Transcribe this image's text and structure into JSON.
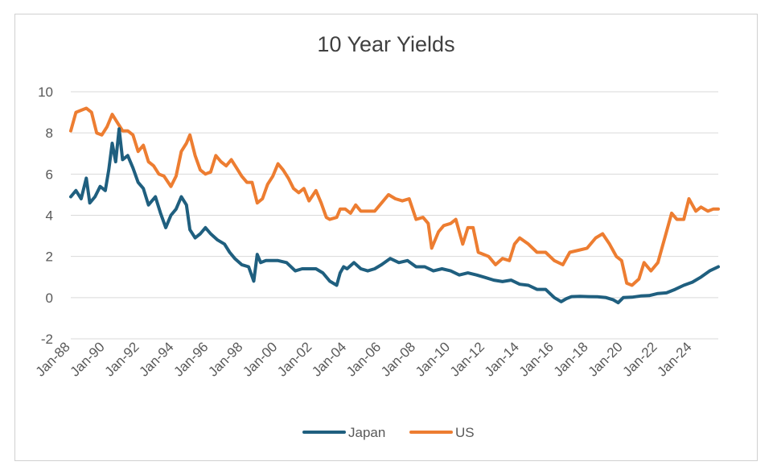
{
  "chart_data": {
    "type": "line",
    "title": "10 Year Yields",
    "xlabel": "",
    "ylabel": "",
    "ylim": [
      -2,
      10
    ],
    "yticks": [
      10,
      8,
      6,
      4,
      2,
      0,
      -2
    ],
    "x_range_years": [
      1988.0,
      2025.5
    ],
    "xtick_labels": [
      "Jan-88",
      "Jan-90",
      "Jan-92",
      "Jan-94",
      "Jan-96",
      "Jan-98",
      "Jan-00",
      "Jan-02",
      "Jan-04",
      "Jan-06",
      "Jan-08",
      "Jan-10",
      "Jan-12",
      "Jan-14",
      "Jan-16",
      "Jan-18",
      "Jan-20",
      "Jan-22",
      "Jan-24"
    ],
    "legend_position": "bottom",
    "series": [
      {
        "name": "Japan",
        "color": "#1f5f7f",
        "x": [
          1988.0,
          1988.3,
          1988.6,
          1988.9,
          1989.1,
          1989.4,
          1989.7,
          1990.0,
          1990.2,
          1990.4,
          1990.6,
          1990.8,
          1991.0,
          1991.3,
          1991.6,
          1991.9,
          1992.2,
          1992.5,
          1992.9,
          1993.2,
          1993.5,
          1993.8,
          1994.1,
          1994.4,
          1994.7,
          1994.9,
          1995.2,
          1995.5,
          1995.8,
          1996.1,
          1996.5,
          1996.9,
          1997.2,
          1997.5,
          1997.9,
          1998.3,
          1998.6,
          1998.8,
          1999.0,
          1999.3,
          1999.6,
          2000.0,
          2000.5,
          2001.0,
          2001.4,
          2001.8,
          2002.2,
          2002.6,
          2003.0,
          2003.4,
          2003.6,
          2003.8,
          2004.0,
          2004.4,
          2004.8,
          2005.2,
          2005.6,
          2006.0,
          2006.5,
          2007.0,
          2007.5,
          2008.0,
          2008.5,
          2009.0,
          2009.5,
          2010.0,
          2010.5,
          2011.0,
          2011.5,
          2012.0,
          2012.5,
          2013.0,
          2013.5,
          2014.0,
          2014.5,
          2015.0,
          2015.5,
          2016.0,
          2016.4,
          2016.7,
          2017.0,
          2017.5,
          2018.0,
          2018.5,
          2019.0,
          2019.4,
          2019.7,
          2020.0,
          2020.5,
          2021.0,
          2021.5,
          2022.0,
          2022.5,
          2023.0,
          2023.5,
          2024.0,
          2024.5,
          2025.0,
          2025.5
        ],
        "values": [
          4.9,
          5.2,
          4.8,
          5.8,
          4.6,
          4.9,
          5.4,
          5.2,
          6.2,
          7.5,
          6.6,
          8.2,
          6.7,
          6.9,
          6.3,
          5.6,
          5.3,
          4.5,
          4.9,
          4.1,
          3.4,
          4.0,
          4.3,
          4.9,
          4.5,
          3.3,
          2.9,
          3.1,
          3.4,
          3.1,
          2.8,
          2.6,
          2.2,
          1.9,
          1.6,
          1.5,
          0.8,
          2.1,
          1.7,
          1.8,
          1.8,
          1.8,
          1.7,
          1.3,
          1.4,
          1.4,
          1.4,
          1.2,
          0.8,
          0.6,
          1.2,
          1.5,
          1.4,
          1.7,
          1.4,
          1.3,
          1.4,
          1.6,
          1.9,
          1.7,
          1.8,
          1.5,
          1.5,
          1.3,
          1.4,
          1.3,
          1.1,
          1.2,
          1.1,
          0.98,
          0.85,
          0.78,
          0.85,
          0.65,
          0.6,
          0.4,
          0.4,
          0.0,
          -0.2,
          -0.05,
          0.05,
          0.06,
          0.05,
          0.04,
          0.0,
          -0.1,
          -0.25,
          0.0,
          0.02,
          0.08,
          0.1,
          0.2,
          0.23,
          0.4,
          0.6,
          0.75,
          1.0,
          1.3,
          1.5
        ]
      },
      {
        "name": "US",
        "color": "#ed7d31",
        "x": [
          1988.0,
          1988.3,
          1988.6,
          1988.9,
          1989.2,
          1989.5,
          1989.8,
          1990.1,
          1990.4,
          1990.7,
          1991.0,
          1991.3,
          1991.6,
          1991.9,
          1992.2,
          1992.5,
          1992.8,
          1993.1,
          1993.4,
          1993.8,
          1994.1,
          1994.4,
          1994.7,
          1994.9,
          1995.2,
          1995.5,
          1995.8,
          1996.1,
          1996.4,
          1996.7,
          1997.0,
          1997.3,
          1997.6,
          1997.9,
          1998.2,
          1998.5,
          1998.8,
          1999.1,
          1999.4,
          1999.7,
          2000.0,
          2000.3,
          2000.6,
          2000.9,
          2001.2,
          2001.5,
          2001.8,
          2002.2,
          2002.5,
          2002.8,
          2003.0,
          2003.4,
          2003.6,
          2003.9,
          2004.2,
          2004.5,
          2004.8,
          2005.2,
          2005.6,
          2006.0,
          2006.4,
          2006.8,
          2007.2,
          2007.6,
          2008.0,
          2008.4,
          2008.7,
          2008.9,
          2009.3,
          2009.6,
          2010.0,
          2010.3,
          2010.7,
          2011.0,
          2011.3,
          2011.6,
          2011.9,
          2012.2,
          2012.6,
          2013.0,
          2013.4,
          2013.7,
          2014.0,
          2014.5,
          2015.0,
          2015.5,
          2016.0,
          2016.5,
          2016.9,
          2017.4,
          2017.9,
          2018.4,
          2018.8,
          2019.2,
          2019.6,
          2019.9,
          2020.2,
          2020.5,
          2020.9,
          2021.2,
          2021.6,
          2022.0,
          2022.4,
          2022.8,
          2023.1,
          2023.5,
          2023.8,
          2024.2,
          2024.5,
          2024.9,
          2025.2,
          2025.5
        ],
        "values": [
          8.1,
          9.0,
          9.1,
          9.2,
          9.0,
          8.0,
          7.9,
          8.3,
          8.9,
          8.5,
          8.1,
          8.1,
          7.9,
          7.1,
          7.4,
          6.6,
          6.4,
          6.0,
          5.9,
          5.4,
          5.9,
          7.1,
          7.5,
          7.9,
          6.9,
          6.2,
          6.0,
          6.1,
          6.9,
          6.6,
          6.4,
          6.7,
          6.3,
          5.9,
          5.6,
          5.6,
          4.6,
          4.8,
          5.5,
          5.9,
          6.5,
          6.2,
          5.8,
          5.3,
          5.1,
          5.3,
          4.7,
          5.2,
          4.6,
          3.9,
          3.8,
          3.9,
          4.3,
          4.3,
          4.1,
          4.5,
          4.2,
          4.2,
          4.2,
          4.6,
          5.0,
          4.8,
          4.7,
          4.8,
          3.8,
          3.9,
          3.6,
          2.4,
          3.2,
          3.5,
          3.6,
          3.8,
          2.6,
          3.4,
          3.4,
          2.2,
          2.1,
          2.0,
          1.6,
          1.9,
          1.8,
          2.6,
          2.9,
          2.6,
          2.2,
          2.2,
          1.8,
          1.6,
          2.2,
          2.3,
          2.4,
          2.9,
          3.1,
          2.6,
          2.0,
          1.8,
          0.7,
          0.6,
          0.9,
          1.7,
          1.3,
          1.7,
          2.9,
          4.1,
          3.8,
          3.8,
          4.8,
          4.2,
          4.4,
          4.2,
          4.3,
          4.3
        ]
      }
    ]
  }
}
